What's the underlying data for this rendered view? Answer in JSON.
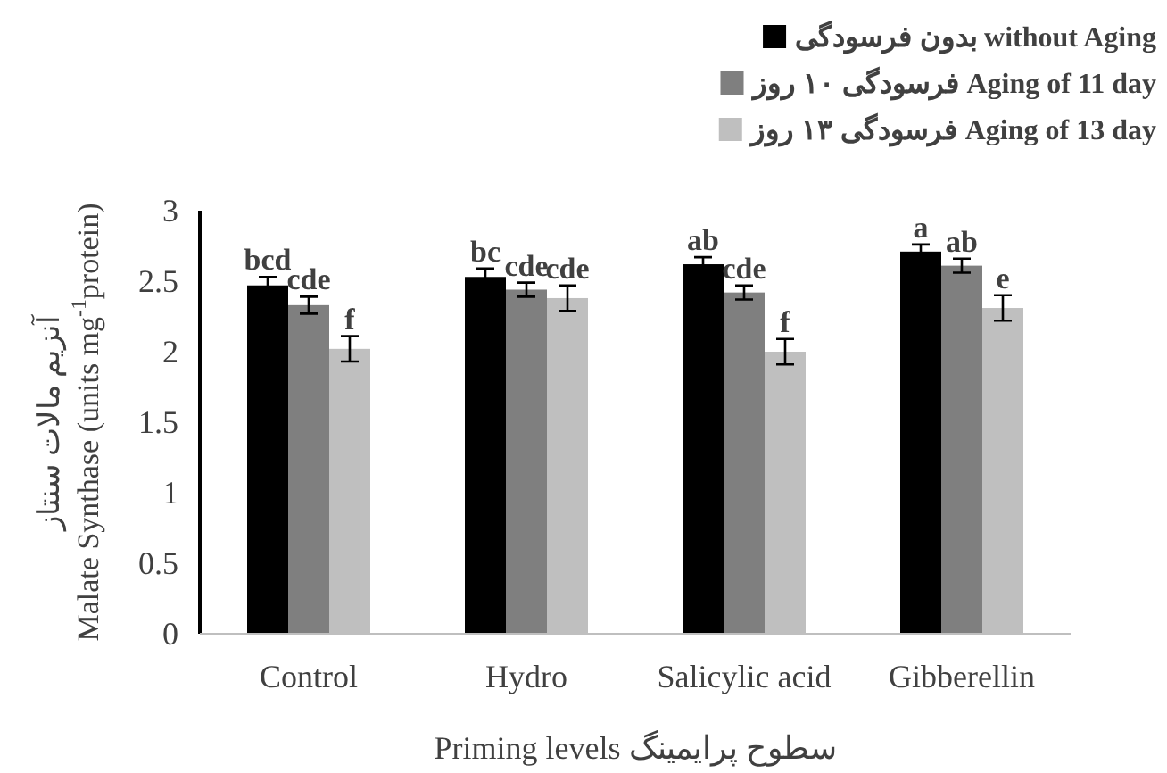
{
  "chart_data": {
    "type": "bar",
    "ylabel": "آنزیم مالات سنتاز\nMalate Synthase (units mg$^{-1}$protein)",
    "xlabel": "Priming levels سطوح پرایمینگ",
    "categories": [
      "Control",
      "Hydro",
      "Salicylic acid",
      "Gibberellin"
    ],
    "series": [
      {
        "name": "بدون فرسودگی without Aging",
        "color": "#000000",
        "values": [
          2.47,
          2.53,
          2.62,
          2.71
        ],
        "errors": [
          0.06,
          0.06,
          0.05,
          0.05
        ],
        "value_labels": [
          "bcd",
          "bc",
          "ab",
          "a"
        ]
      },
      {
        "name": "فرسودگی ۱۰ روز Aging of 11 day",
        "color": "#7f7f7f",
        "values": [
          2.33,
          2.44,
          2.42,
          2.61
        ],
        "errors": [
          0.06,
          0.05,
          0.05,
          0.05
        ],
        "value_labels": [
          "cde",
          "cde",
          "cde",
          "ab"
        ]
      },
      {
        "name": "فرسودگی ۱۳ روز Aging of 13 day",
        "color": "#bfbfbf",
        "values": [
          2.02,
          2.38,
          2.0,
          2.31
        ],
        "errors": [
          0.09,
          0.09,
          0.09,
          0.09
        ],
        "value_labels": [
          "f",
          "cde",
          "f",
          "e"
        ]
      }
    ],
    "ylim": [
      0,
      3
    ],
    "yticks": [
      0,
      0.5,
      1,
      1.5,
      2,
      2.5,
      3
    ],
    "legend": "top right"
  }
}
